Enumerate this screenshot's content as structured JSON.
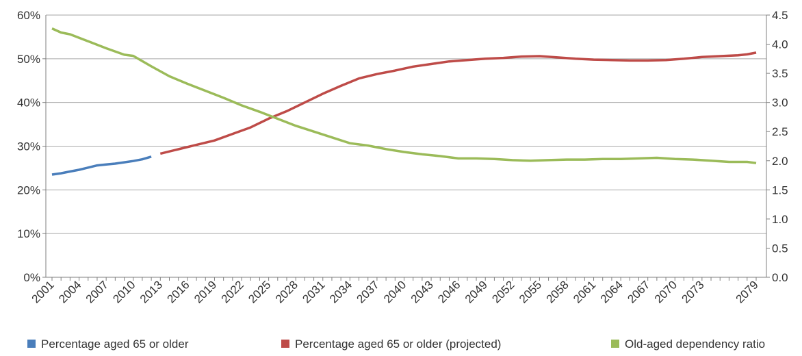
{
  "chart_data": {
    "type": "line",
    "x_tick_labels": [
      "2001",
      "2004",
      "2007",
      "2010",
      "2013",
      "2016",
      "2019",
      "2022",
      "2025",
      "2028",
      "2031",
      "2034",
      "2037",
      "2040",
      "2043",
      "2046",
      "2049",
      "2052",
      "2055",
      "2058",
      "2061",
      "2064",
      "2067",
      "2070",
      "2073",
      "2079"
    ],
    "x_range": [
      2001,
      2079
    ],
    "y_left": {
      "ticks": [
        "0%",
        "10%",
        "20%",
        "30%",
        "40%",
        "50%",
        "60%"
      ],
      "range": [
        0,
        60
      ],
      "unit": "%"
    },
    "y_right": {
      "ticks": [
        "0.0",
        "0.5",
        "1.0",
        "1.5",
        "2.0",
        "2.5",
        "3.0",
        "3.5",
        "4.0",
        "4.5"
      ],
      "range": [
        0,
        4.5
      ]
    },
    "grid": "horizontal",
    "legend_position": "bottom",
    "series": [
      {
        "name": "Percentage aged 65 or older",
        "axis": "left",
        "color": "#4a7ebb",
        "x": [
          2001,
          2002,
          2003,
          2004,
          2005,
          2006,
          2007,
          2008,
          2009,
          2010,
          2011,
          2012
        ],
        "y": [
          23.5,
          23.8,
          24.2,
          24.6,
          25.1,
          25.6,
          25.8,
          26.0,
          26.3,
          26.6,
          27.0,
          27.6
        ]
      },
      {
        "name": "Percentage aged 65 or older (projected)",
        "axis": "left",
        "color": "#be4b48",
        "x": [
          2013,
          2015,
          2017,
          2019,
          2021,
          2023,
          2025,
          2027,
          2029,
          2031,
          2033,
          2035,
          2037,
          2039,
          2041,
          2043,
          2045,
          2047,
          2049,
          2051,
          2053,
          2055,
          2057,
          2059,
          2061,
          2063,
          2065,
          2067,
          2069,
          2071,
          2073,
          2075,
          2077,
          2078,
          2079
        ],
        "y": [
          28.3,
          29.3,
          30.3,
          31.3,
          32.8,
          34.3,
          36.3,
          38.0,
          40.0,
          42.0,
          43.8,
          45.5,
          46.5,
          47.3,
          48.2,
          48.8,
          49.4,
          49.7,
          50.0,
          50.2,
          50.5,
          50.6,
          50.3,
          50.0,
          49.8,
          49.7,
          49.6,
          49.6,
          49.7,
          50.0,
          50.4,
          50.6,
          50.8,
          51.0,
          51.4
        ]
      },
      {
        "name": "Old-aged dependency ratio",
        "axis": "right",
        "color": "#9bbb59",
        "x": [
          2001,
          2002,
          2003,
          2005,
          2007,
          2009,
          2010,
          2012,
          2014,
          2016,
          2018,
          2020,
          2022,
          2024,
          2026,
          2028,
          2030,
          2032,
          2034,
          2036,
          2038,
          2040,
          2042,
          2044,
          2046,
          2048,
          2050,
          2052,
          2054,
          2056,
          2058,
          2060,
          2062,
          2064,
          2066,
          2068,
          2070,
          2072,
          2074,
          2076,
          2078,
          2079
        ],
        "y": [
          4.27,
          4.2,
          4.17,
          4.05,
          3.93,
          3.82,
          3.8,
          3.62,
          3.45,
          3.32,
          3.2,
          3.08,
          2.95,
          2.84,
          2.72,
          2.6,
          2.5,
          2.4,
          2.3,
          2.26,
          2.2,
          2.15,
          2.11,
          2.08,
          2.04,
          2.04,
          2.03,
          2.01,
          2.0,
          2.01,
          2.02,
          2.02,
          2.03,
          2.03,
          2.04,
          2.05,
          2.03,
          2.02,
          2.0,
          1.98,
          1.98,
          1.96
        ]
      }
    ]
  }
}
